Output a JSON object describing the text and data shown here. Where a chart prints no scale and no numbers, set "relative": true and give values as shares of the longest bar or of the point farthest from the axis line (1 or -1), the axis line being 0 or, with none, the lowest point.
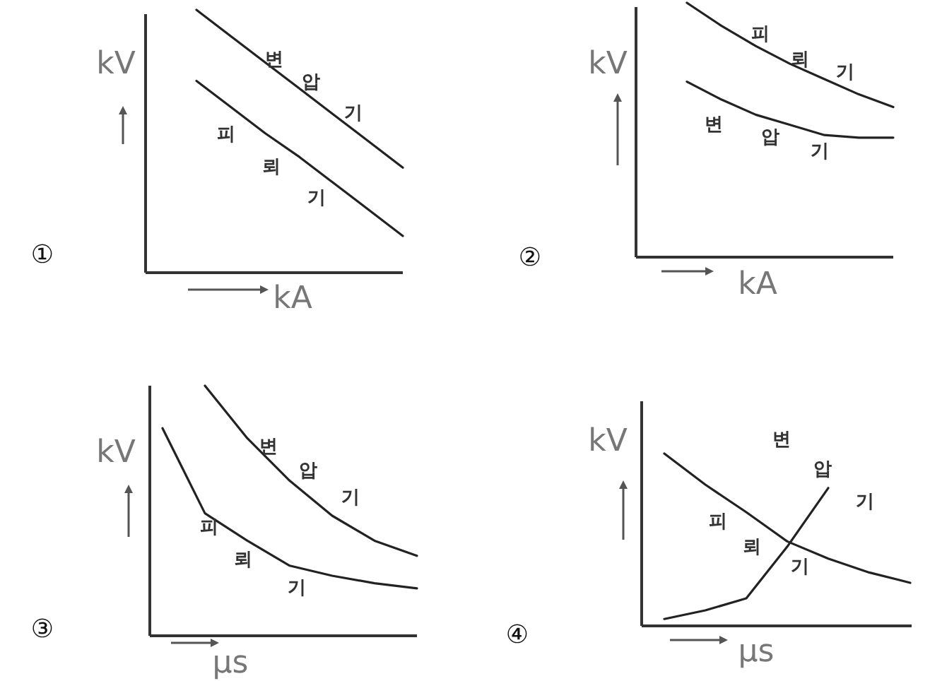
{
  "chart_data": [
    {
      "type": "line",
      "relative": true,
      "xlabel": "kA",
      "ylabel": "kV",
      "annotations": [
        "①"
      ],
      "categories": [
        null,
        null,
        null,
        null,
        null,
        null,
        null
      ],
      "series": [
        {
          "name": "변압기",
          "color": "#222222",
          "values": [
            1.0,
            0.9,
            0.8,
            0.7,
            0.6,
            0.5,
            0.4
          ]
        },
        {
          "name": "피뢰기",
          "color": "#222222",
          "values": [
            0.73,
            0.63,
            0.53,
            0.44,
            0.34,
            0.24,
            0.14
          ]
        }
      ]
    },
    {
      "type": "line",
      "relative": true,
      "xlabel": "kA",
      "ylabel": "kV",
      "annotations": [
        "②"
      ],
      "categories": [
        null,
        null,
        null,
        null,
        null,
        null,
        null
      ],
      "series": [
        {
          "name": "피뢰기",
          "color": "#222222",
          "values": [
            1.0,
            0.91,
            0.83,
            0.76,
            0.7,
            0.64,
            0.59
          ]
        },
        {
          "name": "변압기",
          "color": "#222222",
          "values": [
            0.69,
            0.62,
            0.56,
            0.52,
            0.48,
            0.47,
            0.47
          ]
        }
      ]
    },
    {
      "type": "line",
      "relative": true,
      "xlabel": "μs",
      "ylabel": "kV",
      "annotations": [
        "③"
      ],
      "categories": [
        null,
        null,
        null,
        null,
        null,
        null,
        null
      ],
      "series": [
        {
          "name": "변압기",
          "color": "#222222",
          "values": [
            null,
            1.0,
            0.79,
            0.62,
            0.48,
            0.38,
            0.32
          ]
        },
        {
          "name": "피뢰기",
          "color": "#222222",
          "values": [
            0.83,
            0.49,
            0.38,
            0.28,
            0.24,
            0.21,
            0.19
          ]
        }
      ]
    },
    {
      "type": "line",
      "relative": true,
      "xlabel": "μs",
      "ylabel": "kV",
      "annotations": [
        "④"
      ],
      "categories": [
        null,
        null,
        null,
        null,
        null,
        null,
        null
      ],
      "series": [
        {
          "name": "피뢰기",
          "color": "#222222",
          "values": [
            1.0,
            0.82,
            0.66,
            0.49,
            0.39,
            0.31,
            0.25
          ]
        },
        {
          "name": "변압기",
          "color": "#222222",
          "values": [
            0.04,
            0.09,
            0.16,
            0.46,
            0.8,
            null,
            null
          ]
        }
      ]
    }
  ]
}
